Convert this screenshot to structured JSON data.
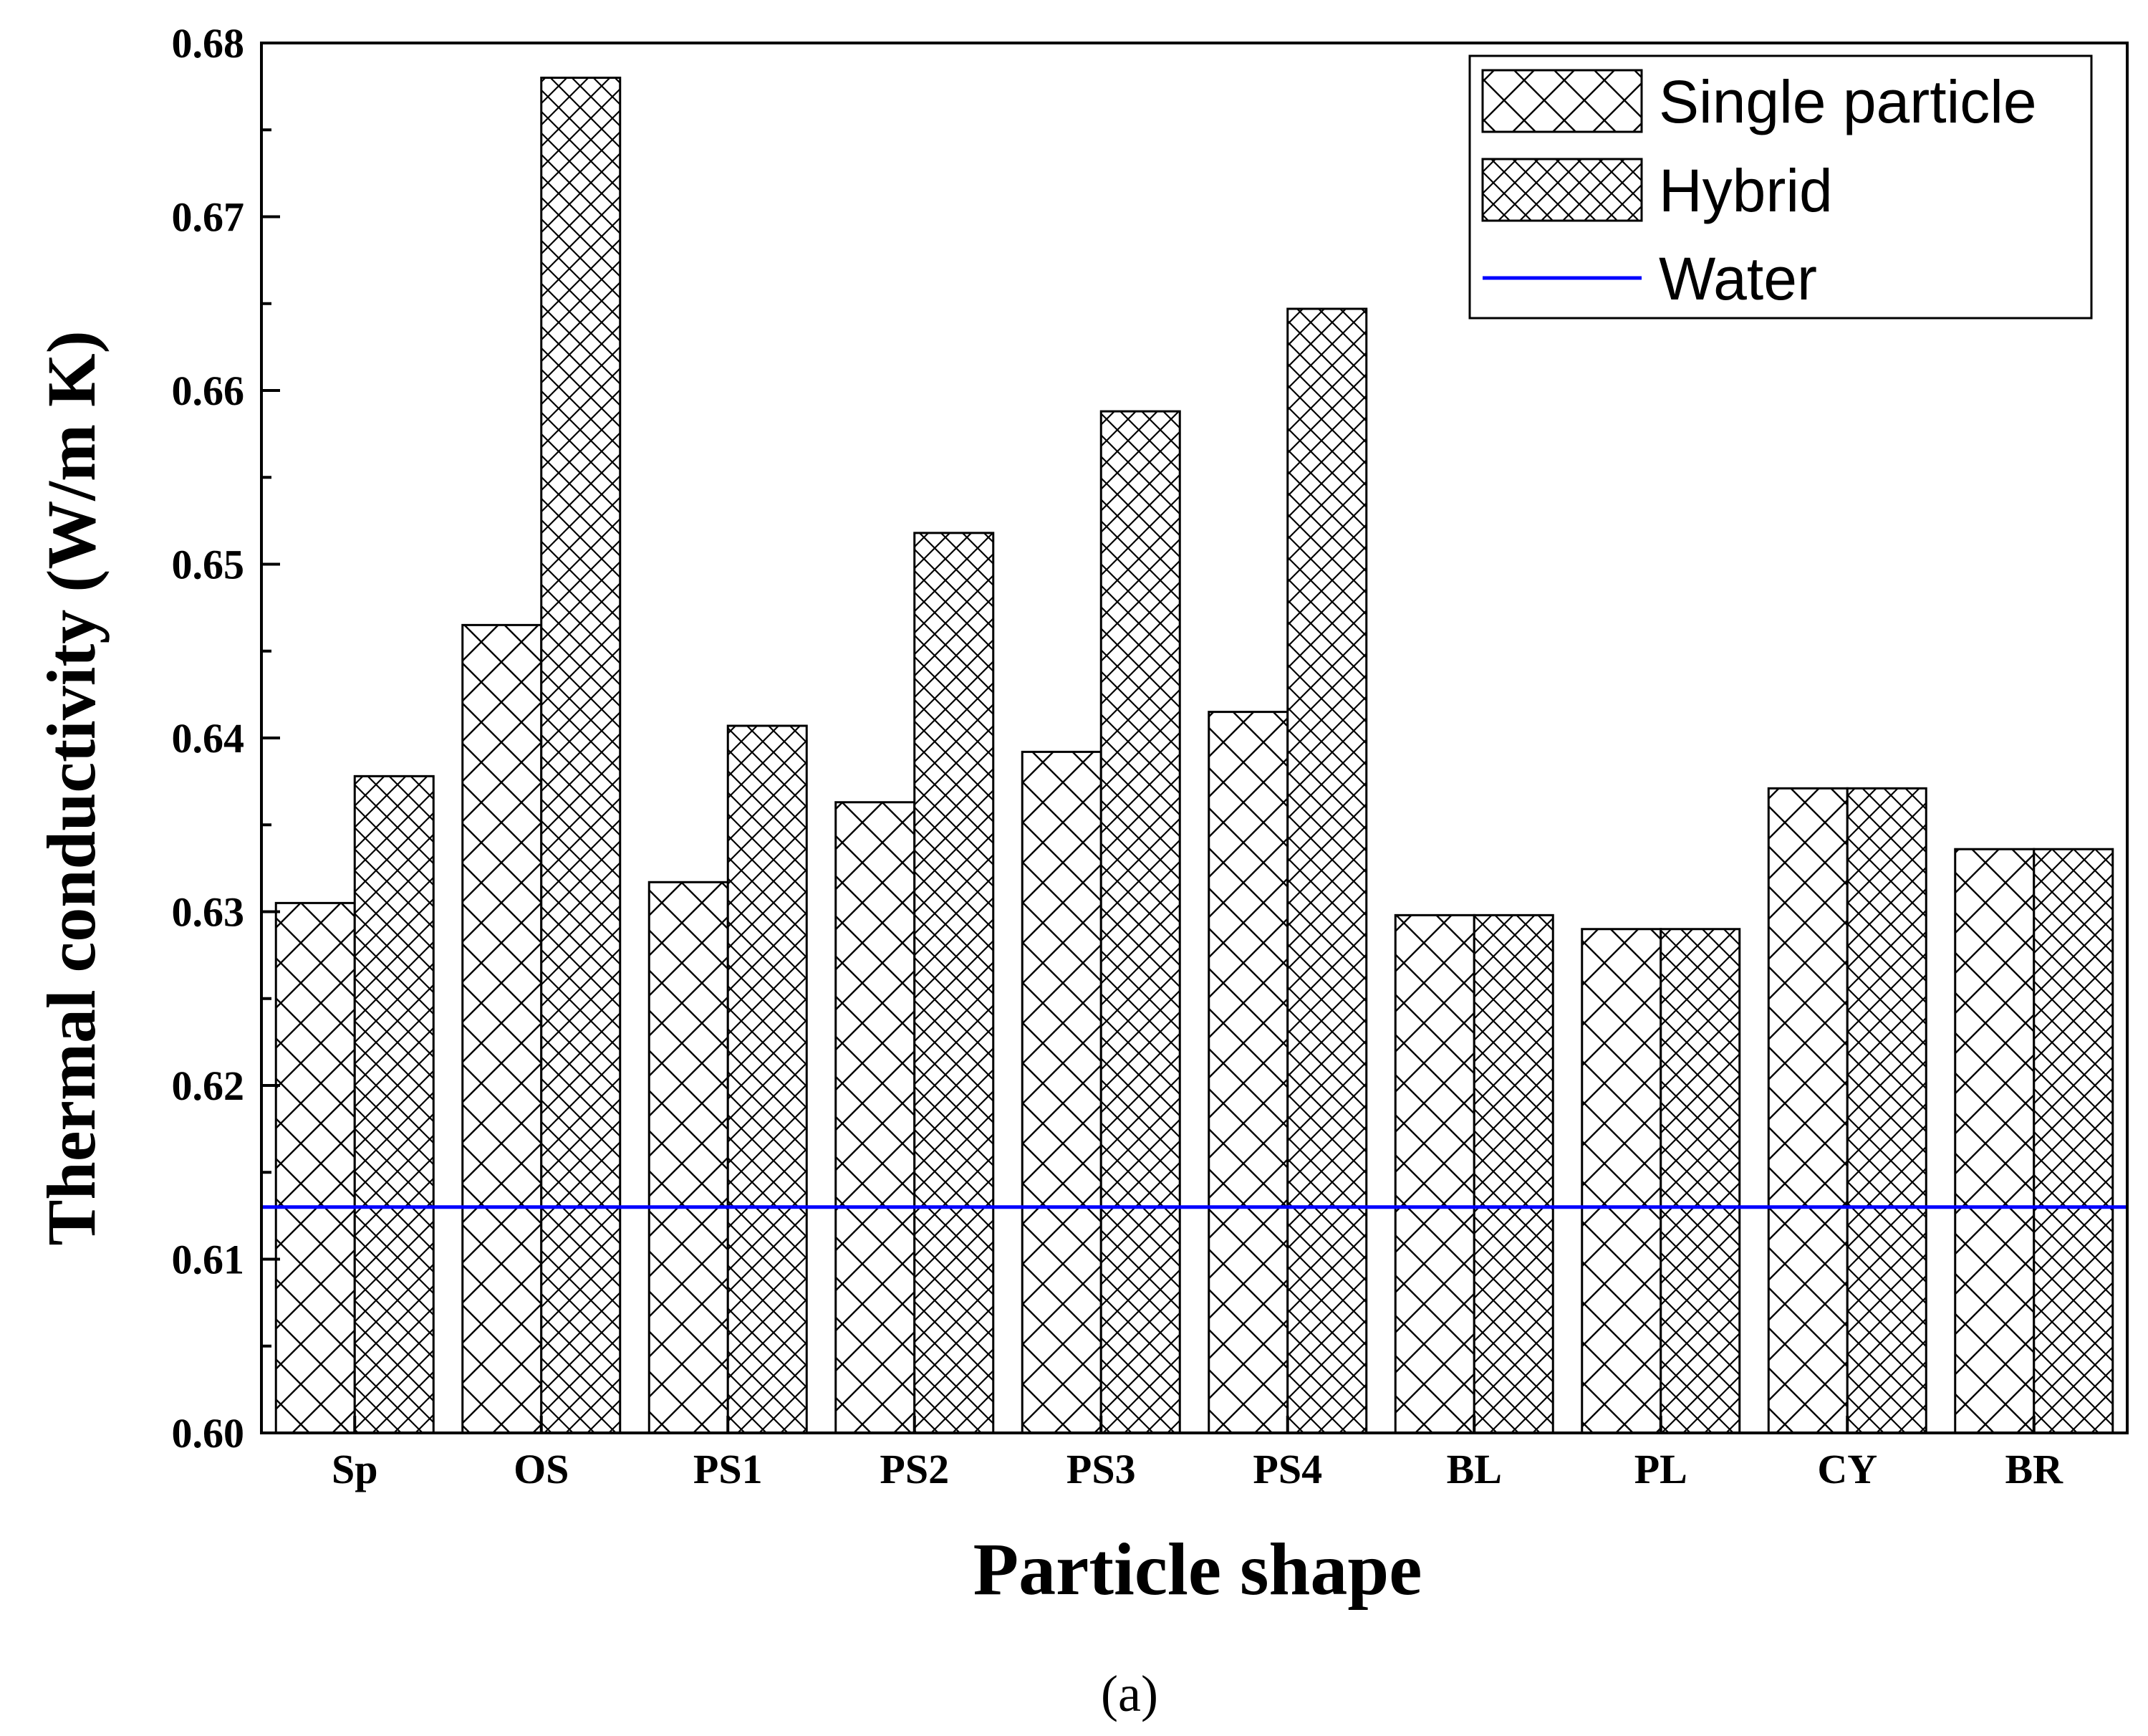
{
  "chart_data": {
    "type": "bar",
    "xlabel": "Particle shape",
    "ylabel": "Thermal conductivity (W/m K)",
    "categories": [
      "Sp",
      "OS",
      "PS1",
      "PS2",
      "PS3",
      "PS4",
      "BL",
      "PL",
      "CY",
      "BR"
    ],
    "series": [
      {
        "name": "Single particle",
        "pattern": "sparse-crosshatch",
        "values": [
          0.6305,
          0.6465,
          0.6317,
          0.6363,
          0.6392,
          0.6415,
          0.6298,
          0.629,
          0.6371,
          0.6336
        ]
      },
      {
        "name": "Hybrid",
        "pattern": "dense-crosshatch",
        "values": [
          0.6378,
          0.678,
          0.6407,
          0.6518,
          0.6588,
          0.6647,
          0.6298,
          0.629,
          0.6371,
          0.6336
        ]
      }
    ],
    "reference_line": {
      "name": "Water",
      "value": 0.613,
      "color": "#0000ff"
    },
    "ylim": [
      0.6,
      0.68
    ],
    "yticks": [
      "0.60",
      "0.61",
      "0.62",
      "0.63",
      "0.64",
      "0.65",
      "0.66",
      "0.67",
      "0.68"
    ],
    "legend_position": "top-right",
    "grid": false
  },
  "caption": "(a)"
}
